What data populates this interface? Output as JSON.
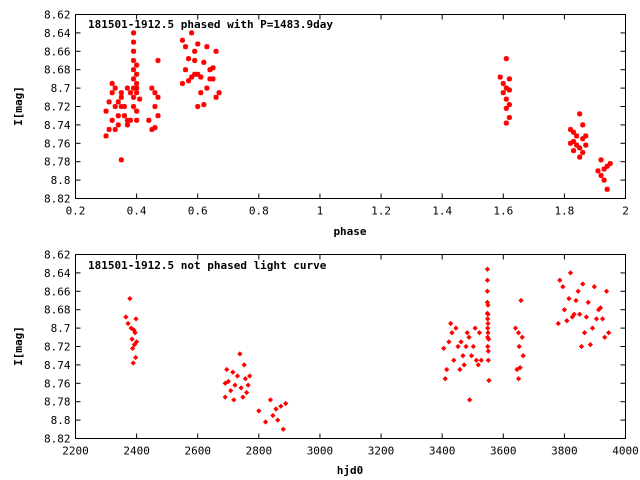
{
  "chart_data": [
    {
      "type": "scatter",
      "title": "181501-1912.5 phased with P=1483.9day",
      "xlabel": "phase",
      "ylabel": "I[mag]",
      "xlim": [
        0.2,
        2.0
      ],
      "ylim": [
        8.62,
        8.82
      ],
      "y_inverted": true,
      "x_ticks": [
        0.2,
        0.4,
        0.6,
        0.8,
        1.0,
        1.2,
        1.4,
        1.6,
        1.8,
        2.0
      ],
      "x_tick_labels": [
        "0.2",
        "0.4",
        "0.6",
        "0.8",
        "1",
        "1.2",
        "1.4",
        "1.6",
        "1.8",
        "2"
      ],
      "y_ticks": [
        8.62,
        8.64,
        8.66,
        8.68,
        8.7,
        8.72,
        8.74,
        8.76,
        8.78,
        8.8,
        8.82
      ],
      "y_tick_labels": [
        "8.62",
        "8.64",
        "8.66",
        "8.68",
        "8.7",
        "8.72",
        "8.74",
        "8.76",
        "8.78",
        "8.8",
        "8.82"
      ],
      "color": "#ff0000",
      "points": [
        [
          0.3,
          8.725
        ],
        [
          0.3,
          8.752
        ],
        [
          0.31,
          8.745
        ],
        [
          0.31,
          8.715
        ],
        [
          0.32,
          8.695
        ],
        [
          0.32,
          8.705
        ],
        [
          0.32,
          8.735
        ],
        [
          0.33,
          8.7
        ],
        [
          0.33,
          8.72
        ],
        [
          0.33,
          8.745
        ],
        [
          0.34,
          8.715
        ],
        [
          0.34,
          8.73
        ],
        [
          0.34,
          8.74
        ],
        [
          0.35,
          8.72
        ],
        [
          0.35,
          8.705
        ],
        [
          0.35,
          8.71
        ],
        [
          0.35,
          8.778
        ],
        [
          0.36,
          8.73
        ],
        [
          0.36,
          8.72
        ],
        [
          0.37,
          8.7
        ],
        [
          0.37,
          8.735
        ],
        [
          0.37,
          8.74
        ],
        [
          0.38,
          8.705
        ],
        [
          0.38,
          8.735
        ],
        [
          0.39,
          8.64
        ],
        [
          0.39,
          8.65
        ],
        [
          0.39,
          8.66
        ],
        [
          0.39,
          8.67
        ],
        [
          0.39,
          8.68
        ],
        [
          0.39,
          8.69
        ],
        [
          0.39,
          8.7
        ],
        [
          0.39,
          8.71
        ],
        [
          0.39,
          8.72
        ],
        [
          0.4,
          8.675
        ],
        [
          0.4,
          8.685
        ],
        [
          0.4,
          8.695
        ],
        [
          0.4,
          8.7
        ],
        [
          0.4,
          8.705
        ],
        [
          0.4,
          8.725
        ],
        [
          0.4,
          8.735
        ],
        [
          0.41,
          8.712
        ],
        [
          0.44,
          8.735
        ],
        [
          0.45,
          8.7
        ],
        [
          0.45,
          8.745
        ],
        [
          0.46,
          8.705
        ],
        [
          0.46,
          8.72
        ],
        [
          0.46,
          8.743
        ],
        [
          0.47,
          8.67
        ],
        [
          0.47,
          8.71
        ],
        [
          0.47,
          8.73
        ],
        [
          0.55,
          8.695
        ],
        [
          0.55,
          8.648
        ],
        [
          0.56,
          8.655
        ],
        [
          0.56,
          8.68
        ],
        [
          0.57,
          8.692
        ],
        [
          0.57,
          8.668
        ],
        [
          0.58,
          8.64
        ],
        [
          0.58,
          8.688
        ],
        [
          0.59,
          8.685
        ],
        [
          0.59,
          8.67
        ],
        [
          0.59,
          8.66
        ],
        [
          0.6,
          8.685
        ],
        [
          0.6,
          8.72
        ],
        [
          0.6,
          8.652
        ],
        [
          0.61,
          8.705
        ],
        [
          0.61,
          8.688
        ],
        [
          0.62,
          8.672
        ],
        [
          0.62,
          8.718
        ],
        [
          0.63,
          8.7
        ],
        [
          0.63,
          8.655
        ],
        [
          0.64,
          8.69
        ],
        [
          0.64,
          8.68
        ],
        [
          0.65,
          8.678
        ],
        [
          0.65,
          8.69
        ],
        [
          0.66,
          8.71
        ],
        [
          0.66,
          8.66
        ],
        [
          0.67,
          8.705
        ],
        [
          1.59,
          8.688
        ],
        [
          1.6,
          8.695
        ],
        [
          1.6,
          8.705
        ],
        [
          1.61,
          8.668
        ],
        [
          1.61,
          8.7
        ],
        [
          1.61,
          8.712
        ],
        [
          1.61,
          8.722
        ],
        [
          1.61,
          8.738
        ],
        [
          1.62,
          8.702
        ],
        [
          1.62,
          8.718
        ],
        [
          1.62,
          8.732
        ],
        [
          1.62,
          8.69
        ],
        [
          1.82,
          8.76
        ],
        [
          1.82,
          8.745
        ],
        [
          1.83,
          8.758
        ],
        [
          1.83,
          8.768
        ],
        [
          1.83,
          8.748
        ],
        [
          1.84,
          8.762
        ],
        [
          1.84,
          8.752
        ],
        [
          1.85,
          8.728
        ],
        [
          1.85,
          8.765
        ],
        [
          1.85,
          8.775
        ],
        [
          1.86,
          8.74
        ],
        [
          1.86,
          8.755
        ],
        [
          1.86,
          8.77
        ],
        [
          1.87,
          8.762
        ],
        [
          1.87,
          8.752
        ],
        [
          1.91,
          8.79
        ],
        [
          1.92,
          8.778
        ],
        [
          1.92,
          8.795
        ],
        [
          1.93,
          8.788
        ],
        [
          1.93,
          8.8
        ],
        [
          1.94,
          8.785
        ],
        [
          1.94,
          8.81
        ],
        [
          1.95,
          8.782
        ]
      ]
    },
    {
      "type": "scatter",
      "title": "181501-1912.5 not phased light curve",
      "xlabel": "hjd0",
      "ylabel": "I[mag]",
      "xlim": [
        2200,
        4000
      ],
      "ylim": [
        8.62,
        8.82
      ],
      "y_inverted": true,
      "x_ticks": [
        2200,
        2400,
        2600,
        2800,
        3000,
        3200,
        3400,
        3600,
        3800,
        4000
      ],
      "x_tick_labels": [
        "2200",
        "2400",
        "2600",
        "2800",
        "3000",
        "3200",
        "3400",
        "3600",
        "3800",
        "4000"
      ],
      "y_ticks": [
        8.62,
        8.64,
        8.66,
        8.68,
        8.7,
        8.72,
        8.74,
        8.76,
        8.78,
        8.8,
        8.82
      ],
      "y_tick_labels": [
        "8.62",
        "8.64",
        "8.66",
        "8.68",
        "8.7",
        "8.72",
        "8.74",
        "8.76",
        "8.78",
        "8.8",
        "8.82"
      ],
      "color": "#ff0000",
      "points": [
        [
          2365,
          8.688
        ],
        [
          2372,
          8.695
        ],
        [
          2378,
          8.668
        ],
        [
          2382,
          8.7
        ],
        [
          2385,
          8.712
        ],
        [
          2387,
          8.722
        ],
        [
          2389,
          8.738
        ],
        [
          2391,
          8.702
        ],
        [
          2393,
          8.718
        ],
        [
          2395,
          8.705
        ],
        [
          2397,
          8.732
        ],
        [
          2398,
          8.69
        ],
        [
          2400,
          8.715
        ],
        [
          2690,
          8.76
        ],
        [
          2695,
          8.745
        ],
        [
          2700,
          8.758
        ],
        [
          2708,
          8.768
        ],
        [
          2715,
          8.748
        ],
        [
          2722,
          8.762
        ],
        [
          2730,
          8.752
        ],
        [
          2738,
          8.728
        ],
        [
          2742,
          8.765
        ],
        [
          2748,
          8.775
        ],
        [
          2752,
          8.74
        ],
        [
          2756,
          8.755
        ],
        [
          2760,
          8.77
        ],
        [
          2765,
          8.762
        ],
        [
          2770,
          8.752
        ],
        [
          2690,
          8.775
        ],
        [
          2718,
          8.778
        ],
        [
          2800,
          8.79
        ],
        [
          2822,
          8.802
        ],
        [
          2838,
          8.778
        ],
        [
          2846,
          8.795
        ],
        [
          2856,
          8.788
        ],
        [
          2862,
          8.8
        ],
        [
          2872,
          8.785
        ],
        [
          2880,
          8.81
        ],
        [
          2888,
          8.782
        ],
        [
          3405,
          8.722
        ],
        [
          3410,
          8.755
        ],
        [
          3415,
          8.745
        ],
        [
          3422,
          8.715
        ],
        [
          3428,
          8.695
        ],
        [
          3432,
          8.705
        ],
        [
          3438,
          8.735
        ],
        [
          3445,
          8.7
        ],
        [
          3452,
          8.72
        ],
        [
          3458,
          8.745
        ],
        [
          3462,
          8.715
        ],
        [
          3468,
          8.73
        ],
        [
          3472,
          8.74
        ],
        [
          3478,
          8.72
        ],
        [
          3482,
          8.705
        ],
        [
          3488,
          8.71
        ],
        [
          3490,
          8.778
        ],
        [
          3496,
          8.73
        ],
        [
          3502,
          8.72
        ],
        [
          3508,
          8.7
        ],
        [
          3512,
          8.735
        ],
        [
          3518,
          8.74
        ],
        [
          3522,
          8.705
        ],
        [
          3528,
          8.735
        ],
        [
          3548,
          8.636
        ],
        [
          3548,
          8.648
        ],
        [
          3548,
          8.66
        ],
        [
          3548,
          8.672
        ],
        [
          3548,
          8.684
        ],
        [
          3549,
          8.69
        ],
        [
          3549,
          8.7
        ],
        [
          3549,
          8.71
        ],
        [
          3549,
          8.72
        ],
        [
          3550,
          8.675
        ],
        [
          3550,
          8.685
        ],
        [
          3550,
          8.695
        ],
        [
          3550,
          8.705
        ],
        [
          3551,
          8.725
        ],
        [
          3551,
          8.735
        ],
        [
          3552,
          8.712
        ],
        [
          3553,
          8.757
        ],
        [
          3640,
          8.7
        ],
        [
          3645,
          8.745
        ],
        [
          3650,
          8.705
        ],
        [
          3652,
          8.72
        ],
        [
          3655,
          8.743
        ],
        [
          3658,
          8.67
        ],
        [
          3662,
          8.71
        ],
        [
          3665,
          8.73
        ],
        [
          3650,
          8.755
        ],
        [
          3780,
          8.695
        ],
        [
          3785,
          8.648
        ],
        [
          3795,
          8.655
        ],
        [
          3800,
          8.68
        ],
        [
          3808,
          8.692
        ],
        [
          3815,
          8.668
        ],
        [
          3820,
          8.64
        ],
        [
          3826,
          8.688
        ],
        [
          3832,
          8.685
        ],
        [
          3838,
          8.67
        ],
        [
          3845,
          8.66
        ],
        [
          3850,
          8.685
        ],
        [
          3856,
          8.72
        ],
        [
          3860,
          8.652
        ],
        [
          3866,
          8.705
        ],
        [
          3872,
          8.688
        ],
        [
          3878,
          8.672
        ],
        [
          3885,
          8.718
        ],
        [
          3892,
          8.7
        ],
        [
          3898,
          8.655
        ],
        [
          3905,
          8.69
        ],
        [
          3912,
          8.68
        ],
        [
          3918,
          8.678
        ],
        [
          3925,
          8.69
        ],
        [
          3932,
          8.71
        ],
        [
          3938,
          8.66
        ],
        [
          3945,
          8.705
        ]
      ]
    }
  ]
}
